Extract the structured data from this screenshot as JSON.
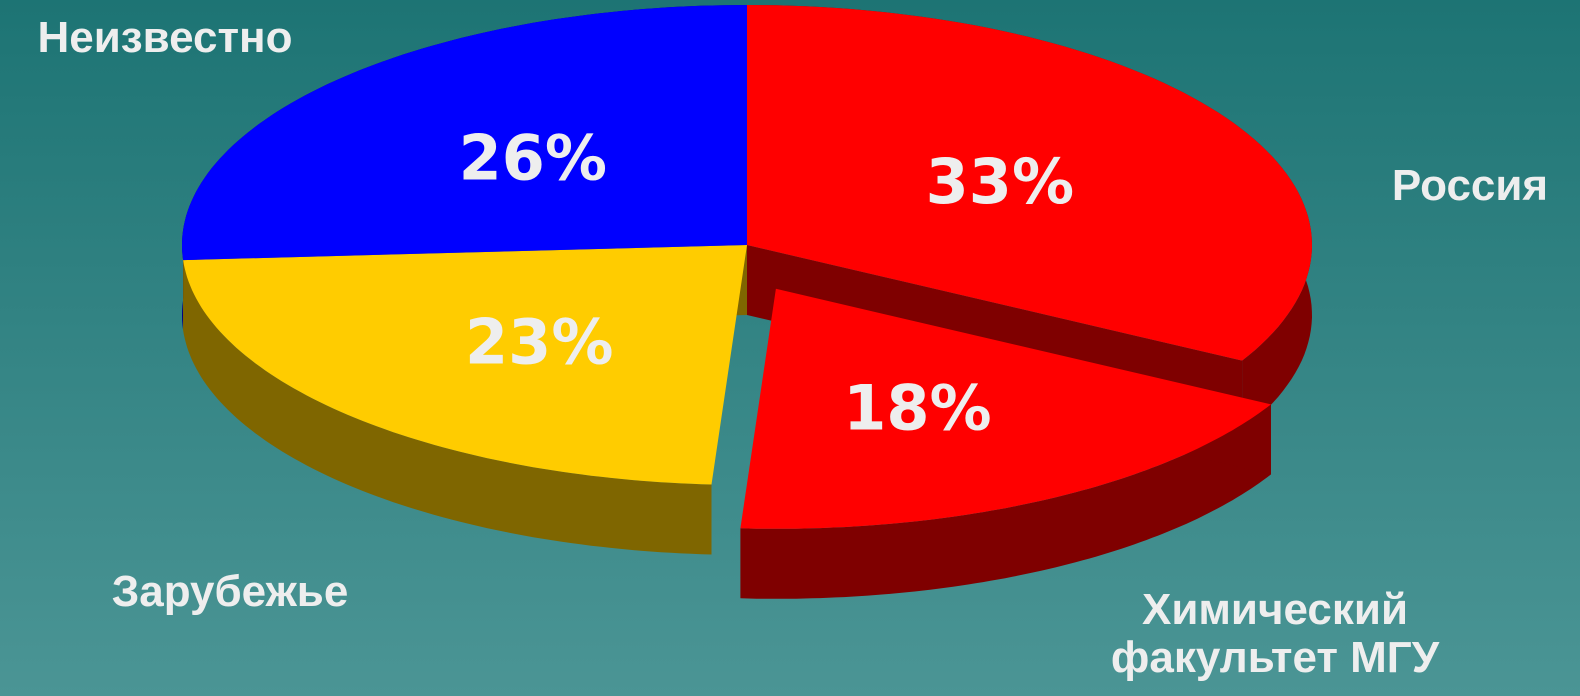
{
  "chart_data": {
    "type": "pie",
    "categories": [
      "Россия",
      "Химический факультет МГУ",
      "Зарубежье",
      "Неизвестно"
    ],
    "values": [
      33,
      18,
      23,
      26
    ],
    "value_labels": [
      "33%",
      "18%",
      "23%",
      "26%"
    ],
    "colors": [
      "#ff0000",
      "#ff0000",
      "#ffcc00",
      "#0000ff"
    ],
    "exploded": [
      false,
      true,
      false,
      false
    ]
  }
}
